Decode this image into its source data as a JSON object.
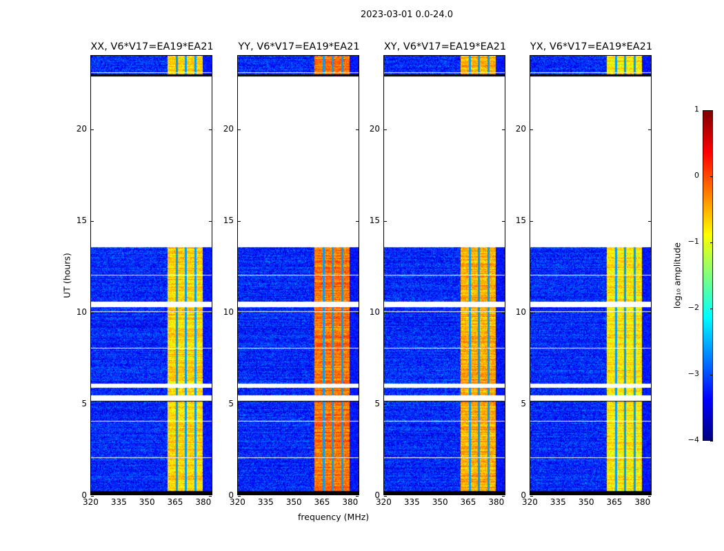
{
  "chart_data": {
    "type": "heatmap",
    "title": "2023-03-01 0.0-24.0",
    "xlabel": "frequency (MHz)",
    "ylabel": "UT (hours)",
    "xlim": [
      320,
      385
    ],
    "ylim": [
      0,
      24
    ],
    "xticks": [
      320,
      335,
      350,
      365,
      380
    ],
    "yticks": [
      0,
      5,
      10,
      15,
      20
    ],
    "panels": [
      {
        "title": "XX, V6*V17=EA19*EA21",
        "band_level": -0.8
      },
      {
        "title": "YY, V6*V17=EA19*EA21",
        "band_level": -0.3
      },
      {
        "title": "XY, V6*V17=EA19*EA21",
        "band_level": -0.6
      },
      {
        "title": "YX, V6*V17=EA19*EA21",
        "band_level": -0.9
      }
    ],
    "background_level": -3.2,
    "bright_band_mhz": [
      361,
      381
    ],
    "band_gaps_mhz": [
      366,
      371,
      376
    ],
    "flagged_hours": [
      [
        21.45,
        22.9
      ],
      [
        13.55,
        21.45
      ],
      [
        10.25,
        10.55
      ],
      [
        5.85,
        6.1
      ],
      [
        5.15,
        5.45
      ]
    ],
    "colorbar": {
      "label": "log₁₀ amplitude",
      "colormap": "jet",
      "vmin": -4,
      "vmax": 1,
      "ticks": [
        1,
        0,
        -1,
        -2,
        -3,
        -4
      ]
    }
  }
}
